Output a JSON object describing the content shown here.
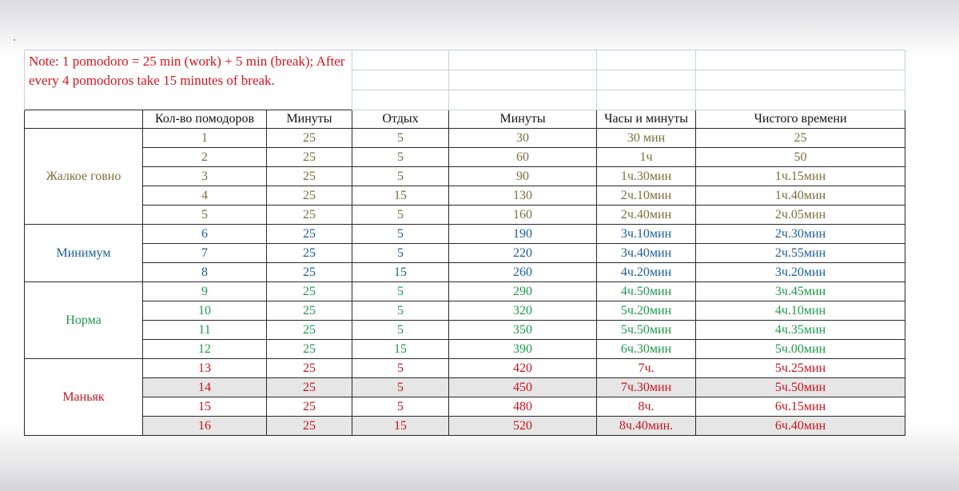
{
  "note": "Note: 1 pomodoro = 25 min (work) + 5 min (break); After every 4 pomodoros take 15 minutes of break.",
  "headers": [
    "Кол-во помодоров",
    "Минуты",
    "Отдых",
    "Минуты",
    "Часы и минуты",
    "Чистого времени"
  ],
  "colors": {
    "zh": "#7c6e3a",
    "min": "#1a5f9a",
    "norm": "#1f9a4b",
    "man": "#c9141f",
    "note": "#d4141b"
  },
  "groups": [
    {
      "label": "Жалкое говно",
      "rows": [
        {
          "count": "1",
          "minutes": "25",
          "rest": "5",
          "total": "30",
          "hm": "30 мин",
          "net": "25"
        },
        {
          "count": "2",
          "minutes": "25",
          "rest": "5",
          "total": "60",
          "hm": "1ч",
          "net": "50"
        },
        {
          "count": "3",
          "minutes": "25",
          "rest": "5",
          "total": "90",
          "hm": "1ч.30мин",
          "net": "1ч.15мин"
        },
        {
          "count": "4",
          "minutes": "25",
          "rest": "15",
          "total": "130",
          "hm": "2ч.10мин",
          "net": "1ч.40мин"
        },
        {
          "count": "5",
          "minutes": "25",
          "rest": "5",
          "total": "160",
          "hm": "2ч.40мин",
          "net": "2ч.05мин"
        }
      ]
    },
    {
      "label": "Минимум",
      "rows": [
        {
          "count": "6",
          "minutes": "25",
          "rest": "5",
          "total": "190",
          "hm": "3ч.10мин",
          "net": "2ч.30мин"
        },
        {
          "count": "7",
          "minutes": "25",
          "rest": "5",
          "total": "220",
          "hm": "3ч.40мин",
          "net": "2ч.55мин"
        },
        {
          "count": "8",
          "minutes": "25",
          "rest": "15",
          "total": "260",
          "hm": "4ч.20мин",
          "net": "3ч.20мин"
        }
      ]
    },
    {
      "label": "Норма",
      "rows": [
        {
          "count": "9",
          "minutes": "25",
          "rest": "5",
          "total": "290",
          "hm": "4ч.50мин",
          "net": "3ч.45мин"
        },
        {
          "count": "10",
          "minutes": "25",
          "rest": "5",
          "total": "320",
          "hm": "5ч.20мин",
          "net": "4ч.10мин"
        },
        {
          "count": "11",
          "minutes": "25",
          "rest": "5",
          "total": "350",
          "hm": "5ч.50мин",
          "net": "4ч.35мин"
        },
        {
          "count": "12",
          "minutes": "25",
          "rest": "15",
          "total": "390",
          "hm": "6ч.30мин",
          "net": "5ч.00мин"
        }
      ]
    },
    {
      "label": "Маньяк",
      "rows": [
        {
          "count": "13",
          "minutes": "25",
          "rest": "5",
          "total": "420",
          "hm": "7ч.",
          "net": "5ч.25мин"
        },
        {
          "count": "14",
          "minutes": "25",
          "rest": "5",
          "total": "450",
          "hm": "7ч.30мин",
          "net": "5ч.50мин"
        },
        {
          "count": "15",
          "minutes": "25",
          "rest": "5",
          "total": "480",
          "hm": "8ч.",
          "net": "6ч.15мин"
        },
        {
          "count": "16",
          "minutes": "25",
          "rest": "15",
          "total": "520",
          "hm": "8ч.40мин.",
          "net": "6ч.40мин"
        }
      ]
    }
  ]
}
